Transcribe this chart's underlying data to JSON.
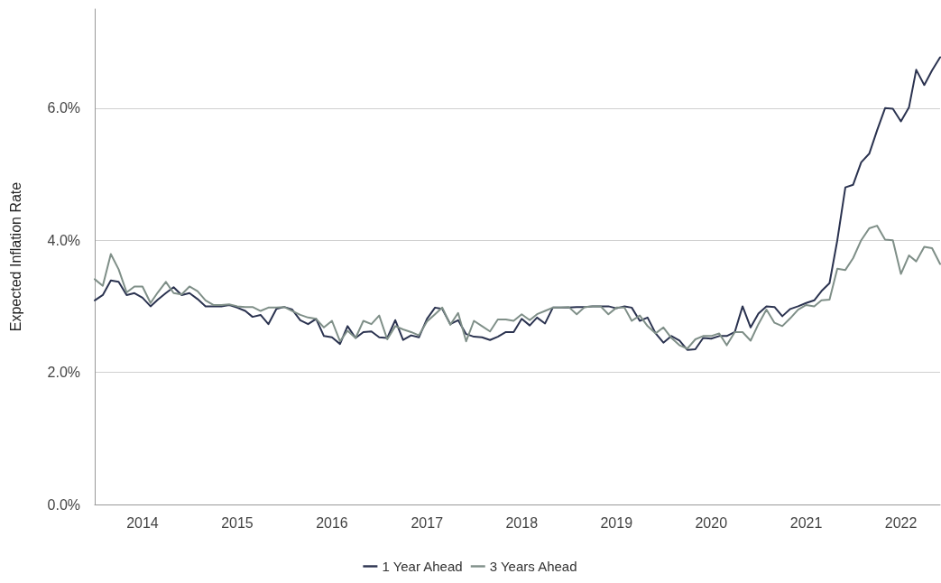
{
  "chart_data": {
    "type": "line",
    "ylabel": "Expected Inflation Rate",
    "x": [
      "2013-07",
      "2013-08",
      "2013-09",
      "2013-10",
      "2013-11",
      "2013-12",
      "2014-01",
      "2014-02",
      "2014-03",
      "2014-04",
      "2014-05",
      "2014-06",
      "2014-07",
      "2014-08",
      "2014-09",
      "2014-10",
      "2014-11",
      "2014-12",
      "2015-01",
      "2015-02",
      "2015-03",
      "2015-04",
      "2015-05",
      "2015-06",
      "2015-07",
      "2015-08",
      "2015-09",
      "2015-10",
      "2015-11",
      "2015-12",
      "2016-01",
      "2016-02",
      "2016-03",
      "2016-04",
      "2016-05",
      "2016-06",
      "2016-07",
      "2016-08",
      "2016-09",
      "2016-10",
      "2016-11",
      "2016-12",
      "2017-01",
      "2017-02",
      "2017-03",
      "2017-04",
      "2017-05",
      "2017-06",
      "2017-07",
      "2017-08",
      "2017-09",
      "2017-10",
      "2017-11",
      "2017-12",
      "2018-01",
      "2018-02",
      "2018-03",
      "2018-04",
      "2018-05",
      "2018-06",
      "2018-07",
      "2018-08",
      "2018-09",
      "2018-10",
      "2018-11",
      "2018-12",
      "2019-01",
      "2019-02",
      "2019-03",
      "2019-04",
      "2019-05",
      "2019-06",
      "2019-07",
      "2019-08",
      "2019-09",
      "2019-10",
      "2019-11",
      "2019-12",
      "2020-01",
      "2020-02",
      "2020-03",
      "2020-04",
      "2020-05",
      "2020-06",
      "2020-07",
      "2020-08",
      "2020-09",
      "2020-10",
      "2020-11",
      "2020-12",
      "2021-01",
      "2021-02",
      "2021-03",
      "2021-04",
      "2021-05",
      "2021-06",
      "2021-07",
      "2021-08",
      "2021-09",
      "2021-10",
      "2021-11",
      "2021-12",
      "2022-01",
      "2022-02",
      "2022-03",
      "2022-04",
      "2022-05",
      "2022-06"
    ],
    "series": [
      {
        "name": "1 Year Ahead",
        "color": "#2b3350",
        "values": [
          3.09,
          3.17,
          3.39,
          3.37,
          3.17,
          3.2,
          3.13,
          3.0,
          3.1,
          3.2,
          3.29,
          3.17,
          3.2,
          3.11,
          3.0,
          3.0,
          3.0,
          3.02,
          2.98,
          2.93,
          2.84,
          2.87,
          2.73,
          2.96,
          2.99,
          2.95,
          2.79,
          2.73,
          2.81,
          2.55,
          2.53,
          2.43,
          2.7,
          2.52,
          2.61,
          2.62,
          2.53,
          2.52,
          2.79,
          2.49,
          2.56,
          2.53,
          2.81,
          2.98,
          2.96,
          2.73,
          2.79,
          2.58,
          2.54,
          2.53,
          2.49,
          2.54,
          2.61,
          2.61,
          2.81,
          2.71,
          2.83,
          2.74,
          2.98,
          2.98,
          2.98,
          2.99,
          2.99,
          3.0,
          3.0,
          3.0,
          2.97,
          3.0,
          2.98,
          2.78,
          2.83,
          2.59,
          2.45,
          2.55,
          2.48,
          2.34,
          2.35,
          2.52,
          2.51,
          2.55,
          2.55,
          2.61,
          3.0,
          2.68,
          2.89,
          3.0,
          2.99,
          2.85,
          2.96,
          3.0,
          3.05,
          3.09,
          3.23,
          3.35,
          4.0,
          4.8,
          4.84,
          5.18,
          5.31,
          5.66,
          6.0,
          5.99,
          5.8,
          6.01,
          6.58,
          6.35,
          6.57,
          6.77
        ]
      },
      {
        "name": "3 Years Ahead",
        "color": "#7f8f88",
        "values": [
          3.41,
          3.31,
          3.79,
          3.56,
          3.21,
          3.3,
          3.3,
          3.05,
          3.21,
          3.37,
          3.2,
          3.18,
          3.3,
          3.23,
          3.09,
          3.02,
          3.02,
          3.03,
          3.0,
          2.99,
          2.99,
          2.93,
          2.98,
          2.98,
          2.99,
          2.93,
          2.87,
          2.83,
          2.81,
          2.68,
          2.78,
          2.47,
          2.63,
          2.52,
          2.78,
          2.73,
          2.86,
          2.5,
          2.7,
          2.65,
          2.61,
          2.56,
          2.77,
          2.88,
          2.98,
          2.72,
          2.9,
          2.47,
          2.78,
          2.7,
          2.62,
          2.8,
          2.8,
          2.78,
          2.88,
          2.79,
          2.88,
          2.93,
          2.98,
          2.98,
          2.99,
          2.88,
          2.99,
          3.0,
          3.0,
          2.88,
          2.98,
          2.98,
          2.78,
          2.86,
          2.7,
          2.59,
          2.68,
          2.52,
          2.41,
          2.36,
          2.5,
          2.55,
          2.55,
          2.59,
          2.41,
          2.61,
          2.61,
          2.48,
          2.73,
          2.95,
          2.75,
          2.7,
          2.82,
          2.95,
          3.02,
          3.0,
          3.09,
          3.1,
          3.57,
          3.55,
          3.73,
          4.0,
          4.18,
          4.22,
          4.01,
          4.0,
          3.49,
          3.77,
          3.68,
          3.9,
          3.88,
          3.64
        ]
      }
    ],
    "xlim": [
      "2013-07",
      "2022-06"
    ],
    "xticks": [
      {
        "value": "2014-01",
        "label": "2014"
      },
      {
        "value": "2015-01",
        "label": "2015"
      },
      {
        "value": "2016-01",
        "label": "2016"
      },
      {
        "value": "2017-01",
        "label": "2017"
      },
      {
        "value": "2018-01",
        "label": "2018"
      },
      {
        "value": "2019-01",
        "label": "2019"
      },
      {
        "value": "2020-01",
        "label": "2020"
      },
      {
        "value": "2021-01",
        "label": "2021"
      },
      {
        "value": "2022-01",
        "label": "2022"
      }
    ],
    "ylim": [
      0,
      7.5
    ],
    "yticks": [
      {
        "value": 0,
        "label": "0.0%"
      },
      {
        "value": 2,
        "label": "2.0%"
      },
      {
        "value": 4,
        "label": "4.0%"
      },
      {
        "value": 6,
        "label": "6.0%"
      }
    ],
    "grid": "y",
    "legend": "bottom",
    "marker": "none",
    "line_style": "solid"
  }
}
